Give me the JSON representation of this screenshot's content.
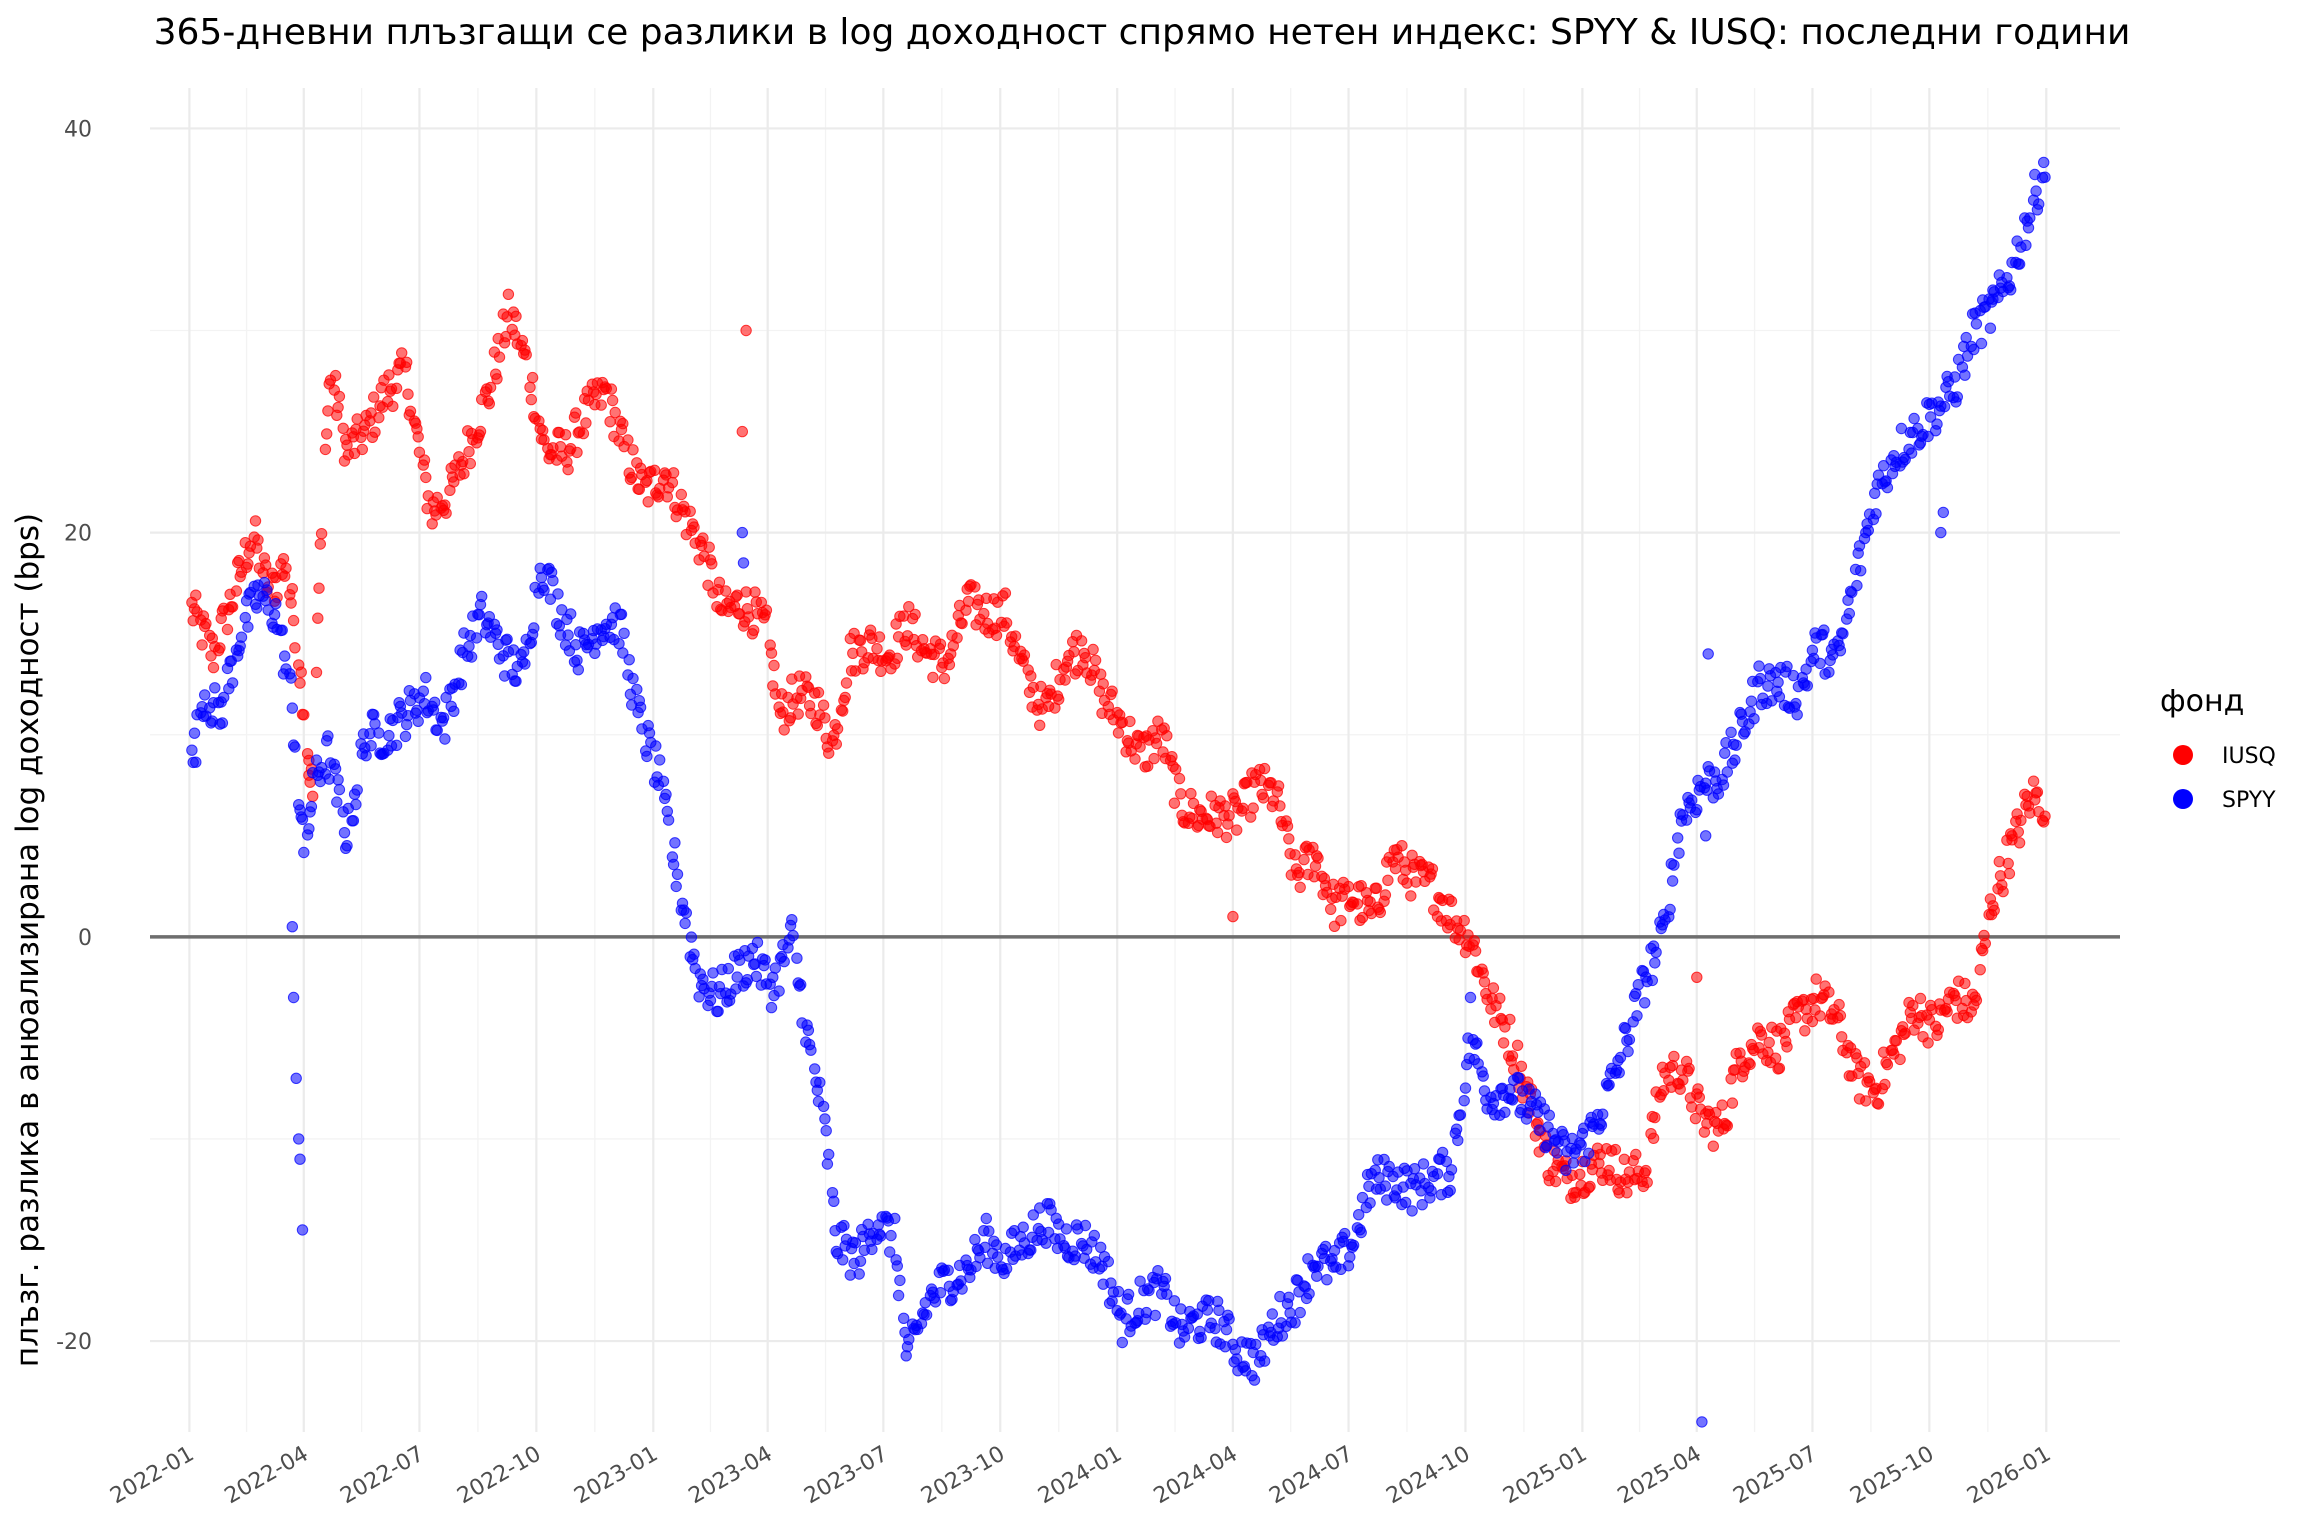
{
  "chart_data": {
    "type": "scatter",
    "title": "365-дневни плъзгащи се разлики в log доходност спрямо нетен индекс: SPYY & IUSQ: последни години",
    "xlabel": "",
    "ylabel": "плъзг. разлика в анюализирана log доходност (bps)",
    "x_axis_type": "date",
    "xlim": [
      "2021-12-01",
      "2026-02-28"
    ],
    "ylim": [
      -24.5,
      42
    ],
    "x_ticks": [
      "2022-01",
      "2022-04",
      "2022-07",
      "2022-10",
      "2023-01",
      "2023-04",
      "2023-07",
      "2023-10",
      "2024-01",
      "2024-04",
      "2024-07",
      "2024-10",
      "2025-01",
      "2025-04",
      "2025-07",
      "2025-10",
      "2026-01"
    ],
    "y_ticks": [
      -20,
      0,
      20,
      40
    ],
    "grid": true,
    "reference_line": 0,
    "legend": {
      "title": "фонд",
      "position": "right"
    },
    "series": [
      {
        "name": "IUSQ",
        "color": "#ff0000",
        "anchors": [
          [
            "2022-01-03",
            16.2
          ],
          [
            "2022-01-20",
            14
          ],
          [
            "2022-02-05",
            17
          ],
          [
            "2022-02-20",
            20
          ],
          [
            "2022-03-05",
            17
          ],
          [
            "2022-03-18",
            18.5
          ],
          [
            "2022-03-28",
            14
          ],
          [
            "2022-04-08",
            7
          ],
          [
            "2022-04-15",
            21
          ],
          [
            "2022-04-22",
            28
          ],
          [
            "2022-05-05",
            24
          ],
          [
            "2022-05-20",
            25
          ],
          [
            "2022-06-05",
            27
          ],
          [
            "2022-06-20",
            28
          ],
          [
            "2022-07-01",
            24
          ],
          [
            "2022-07-10",
            21
          ],
          [
            "2022-07-25",
            22
          ],
          [
            "2022-08-10",
            24.5
          ],
          [
            "2022-08-25",
            27
          ],
          [
            "2022-09-10",
            31
          ],
          [
            "2022-09-25",
            28
          ],
          [
            "2022-10-08",
            24
          ],
          [
            "2022-10-25",
            24
          ],
          [
            "2022-11-10",
            26
          ],
          [
            "2022-11-25",
            27
          ],
          [
            "2022-12-10",
            24
          ],
          [
            "2022-12-25",
            22
          ],
          [
            "2023-01-10",
            23
          ],
          [
            "2023-01-25",
            21
          ],
          [
            "2023-02-10",
            19
          ],
          [
            "2023-02-25",
            16
          ],
          [
            "2023-03-10",
            16.5
          ],
          [
            "2023-03-22",
            16
          ],
          [
            "2023-04-01",
            15
          ],
          [
            "2023-04-10",
            11
          ],
          [
            "2023-04-25",
            12
          ],
          [
            "2023-05-10",
            11.5
          ],
          [
            "2023-05-22",
            9.5
          ],
          [
            "2023-06-05",
            14
          ],
          [
            "2023-06-20",
            14.5
          ],
          [
            "2023-07-05",
            14
          ],
          [
            "2023-07-20",
            15.5
          ],
          [
            "2023-08-05",
            14
          ],
          [
            "2023-08-20",
            13.5
          ],
          [
            "2023-09-05",
            16.5
          ],
          [
            "2023-09-20",
            16
          ],
          [
            "2023-10-05",
            16
          ],
          [
            "2023-10-20",
            13
          ],
          [
            "2023-11-05",
            11
          ],
          [
            "2023-11-20",
            13.5
          ],
          [
            "2023-12-05",
            14.5
          ],
          [
            "2023-12-20",
            12
          ],
          [
            "2024-01-05",
            10.5
          ],
          [
            "2024-01-20",
            9
          ],
          [
            "2024-02-05",
            10
          ],
          [
            "2024-02-20",
            6.5
          ],
          [
            "2024-03-05",
            6
          ],
          [
            "2024-03-20",
            6
          ],
          [
            "2024-04-05",
            6
          ],
          [
            "2024-04-20",
            7.5
          ],
          [
            "2024-05-05",
            7
          ],
          [
            "2024-05-20",
            3
          ],
          [
            "2024-06-05",
            4
          ],
          [
            "2024-06-20",
            1.5
          ],
          [
            "2024-07-05",
            2
          ],
          [
            "2024-07-20",
            1
          ],
          [
            "2024-08-05",
            4
          ],
          [
            "2024-08-20",
            3
          ],
          [
            "2024-09-05",
            2.5
          ],
          [
            "2024-09-20",
            1
          ],
          [
            "2024-10-05",
            0
          ],
          [
            "2024-10-20",
            -3
          ],
          [
            "2024-11-05",
            -5
          ],
          [
            "2024-11-20",
            -8
          ],
          [
            "2024-12-05",
            -11
          ],
          [
            "2024-12-20",
            -12
          ],
          [
            "2025-01-05",
            -11.5
          ],
          [
            "2025-01-20",
            -11
          ],
          [
            "2025-02-05",
            -12
          ],
          [
            "2025-02-20",
            -11.5
          ],
          [
            "2025-03-05",
            -7
          ],
          [
            "2025-03-20",
            -6.5
          ],
          [
            "2025-04-05",
            -9
          ],
          [
            "2025-04-20",
            -9.5
          ],
          [
            "2025-05-05",
            -6
          ],
          [
            "2025-05-20",
            -5
          ],
          [
            "2025-06-05",
            -5.5
          ],
          [
            "2025-06-20",
            -4
          ],
          [
            "2025-07-05",
            -3
          ],
          [
            "2025-07-20",
            -4
          ],
          [
            "2025-08-05",
            -7
          ],
          [
            "2025-08-20",
            -7.5
          ],
          [
            "2025-09-05",
            -5.5
          ],
          [
            "2025-09-20",
            -3.5
          ],
          [
            "2025-10-05",
            -4.5
          ],
          [
            "2025-10-20",
            -3
          ],
          [
            "2025-11-05",
            -3.5
          ],
          [
            "2025-11-20",
            2
          ],
          [
            "2025-12-05",
            4.5
          ],
          [
            "2025-12-20",
            7
          ],
          [
            "2026-01-01",
            6.5
          ]
        ],
        "outliers": [
          [
            "2023-03-15",
            30
          ],
          [
            "2023-03-12",
            25
          ],
          [
            "2024-04-01",
            1
          ],
          [
            "2025-04-01",
            -2
          ],
          [
            "2025-12-05",
            5
          ],
          [
            "2022-04-05",
            8
          ]
        ]
      },
      {
        "name": "SPYY",
        "color": "#0000ff",
        "anchors": [
          [
            "2022-01-03",
            8.5
          ],
          [
            "2022-01-12",
            12
          ],
          [
            "2022-01-25",
            11
          ],
          [
            "2022-02-10",
            15
          ],
          [
            "2022-02-25",
            17
          ],
          [
            "2022-03-10",
            16
          ],
          [
            "2022-03-22",
            12
          ],
          [
            "2022-04-01",
            4
          ],
          [
            "2022-04-10",
            8
          ],
          [
            "2022-04-20",
            9
          ],
          [
            "2022-05-05",
            5
          ],
          [
            "2022-05-20",
            10
          ],
          [
            "2022-06-05",
            10
          ],
          [
            "2022-06-20",
            11
          ],
          [
            "2022-07-05",
            12
          ],
          [
            "2022-07-20",
            10.5
          ],
          [
            "2022-08-05",
            14
          ],
          [
            "2022-08-20",
            16
          ],
          [
            "2022-09-05",
            14
          ],
          [
            "2022-09-20",
            13
          ],
          [
            "2022-10-05",
            18.5
          ],
          [
            "2022-10-20",
            16
          ],
          [
            "2022-11-05",
            14
          ],
          [
            "2022-11-20",
            15.5
          ],
          [
            "2022-12-05",
            15.5
          ],
          [
            "2022-12-20",
            11
          ],
          [
            "2023-01-05",
            8
          ],
          [
            "2023-01-20",
            3
          ],
          [
            "2023-02-05",
            -2
          ],
          [
            "2023-02-20",
            -3
          ],
          [
            "2023-03-05",
            -2
          ],
          [
            "2023-03-20",
            -1
          ],
          [
            "2023-04-05",
            -2.5
          ],
          [
            "2023-04-20",
            0
          ],
          [
            "2023-05-05",
            -6
          ],
          [
            "2023-05-15",
            -9
          ],
          [
            "2023-05-25",
            -15
          ],
          [
            "2023-06-10",
            -16
          ],
          [
            "2023-06-25",
            -14
          ],
          [
            "2023-07-10",
            -15
          ],
          [
            "2023-07-20",
            -21
          ],
          [
            "2023-08-05",
            -18
          ],
          [
            "2023-08-20",
            -17
          ],
          [
            "2023-09-05",
            -16.5
          ],
          [
            "2023-09-20",
            -15
          ],
          [
            "2023-10-05",
            -16
          ],
          [
            "2023-10-20",
            -15
          ],
          [
            "2023-11-05",
            -14
          ],
          [
            "2023-11-20",
            -15
          ],
          [
            "2023-12-05",
            -15
          ],
          [
            "2023-12-20",
            -16
          ],
          [
            "2024-01-05",
            -19
          ],
          [
            "2024-01-20",
            -18
          ],
          [
            "2024-02-05",
            -17.5
          ],
          [
            "2024-02-20",
            -19.5
          ],
          [
            "2024-03-05",
            -19
          ],
          [
            "2024-03-20",
            -19
          ],
          [
            "2024-04-05",
            -20.5
          ],
          [
            "2024-04-20",
            -21
          ],
          [
            "2024-05-05",
            -19
          ],
          [
            "2024-05-20",
            -18
          ],
          [
            "2024-06-05",
            -16
          ],
          [
            "2024-06-20",
            -16.5
          ],
          [
            "2024-07-05",
            -15
          ],
          [
            "2024-07-20",
            -12
          ],
          [
            "2024-08-05",
            -12
          ],
          [
            "2024-08-20",
            -12.5
          ],
          [
            "2024-09-05",
            -12
          ],
          [
            "2024-09-20",
            -11.5
          ],
          [
            "2024-10-05",
            -5
          ],
          [
            "2024-10-20",
            -8
          ],
          [
            "2024-11-05",
            -7.5
          ],
          [
            "2024-11-20",
            -8.5
          ],
          [
            "2024-12-05",
            -9.5
          ],
          [
            "2024-12-20",
            -11
          ],
          [
            "2025-01-05",
            -10
          ],
          [
            "2025-01-20",
            -8
          ],
          [
            "2025-02-05",
            -5
          ],
          [
            "2025-02-20",
            -2
          ],
          [
            "2025-03-05",
            0
          ],
          [
            "2025-03-20",
            6
          ],
          [
            "2025-04-05",
            7.5
          ],
          [
            "2025-04-20",
            8
          ],
          [
            "2025-05-05",
            10
          ],
          [
            "2025-05-20",
            12.5
          ],
          [
            "2025-06-05",
            12.5
          ],
          [
            "2025-06-20",
            12
          ],
          [
            "2025-07-05",
            14.5
          ],
          [
            "2025-07-20",
            13.5
          ],
          [
            "2025-08-05",
            18
          ],
          [
            "2025-08-20",
            22
          ],
          [
            "2025-09-05",
            24
          ],
          [
            "2025-09-20",
            25
          ],
          [
            "2025-10-05",
            26
          ],
          [
            "2025-10-20",
            27
          ],
          [
            "2025-11-05",
            30
          ],
          [
            "2025-11-20",
            31
          ],
          [
            "2025-12-05",
            33
          ],
          [
            "2025-12-20",
            36
          ],
          [
            "2026-01-01",
            38.5
          ]
        ],
        "outliers": [
          [
            "2022-03-24",
            -3
          ],
          [
            "2022-03-26",
            -7
          ],
          [
            "2022-03-28",
            -10
          ],
          [
            "2022-03-29",
            -11
          ],
          [
            "2022-03-31",
            -14.5
          ],
          [
            "2022-03-23",
            0.5
          ],
          [
            "2023-03-12",
            20
          ],
          [
            "2023-03-13",
            18.5
          ],
          [
            "2025-04-05",
            -24
          ],
          [
            "2025-04-08",
            5
          ],
          [
            "2025-04-10",
            14
          ],
          [
            "2025-10-10",
            20
          ],
          [
            "2025-10-12",
            21
          ],
          [
            "2025-11-20",
            32
          ],
          [
            "2024-10-05",
            -3
          ]
        ]
      }
    ]
  }
}
